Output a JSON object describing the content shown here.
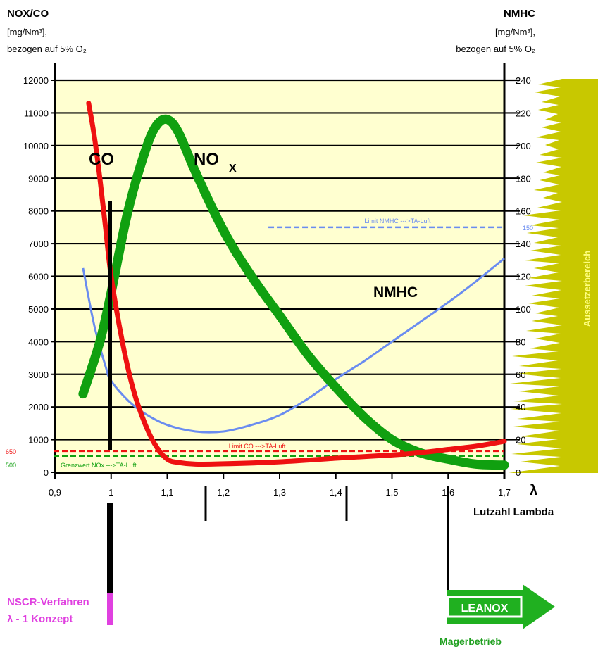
{
  "left_axis_title": {
    "line1": "NOX/CO",
    "line2": "[mg/Nm³],",
    "line3": "bezogen auf 5% O₂"
  },
  "right_axis_title": {
    "line1": "NMHC",
    "line2": "[mg/Nm³],",
    "line3": "bezogen auf 5% O₂"
  },
  "x_axis": {
    "symbol": "λ",
    "label": "Lutzahl Lambda",
    "tick_labels": [
      "0,9",
      "1",
      "1,1",
      "1,2",
      "1,3",
      "1,4",
      "1,5",
      "1,6",
      "1,7"
    ]
  },
  "curve_labels": {
    "co": "CO",
    "nox": "NO",
    "nox_sub": "X",
    "nmhc": "NMHC"
  },
  "limits": {
    "nmhc": {
      "text": "Limit NMHC --->TA-Luft",
      "value_label": "150"
    },
    "co": {
      "text": "Limit CO --->TA-Luft",
      "value_label": "650"
    },
    "nox": {
      "text": "Grenzwert NOx --->TA-Luft",
      "value_label": "500"
    }
  },
  "side_band_label": "Aussetzerbereich",
  "nscr": {
    "line1": "NSCR-Verfahren",
    "line2": "λ - 1 Konzept"
  },
  "leanox": {
    "label": "LEANOX",
    "prefix": "©",
    "sub": "Magerbetrieb"
  },
  "colors": {
    "co": "#ee1111",
    "nox": "#10a010",
    "nmhc": "#6a8cf0",
    "plot_bg": "#ffffd0",
    "band": "#c8c800",
    "nscr": "#e040e0"
  },
  "chart_data": {
    "type": "line",
    "xlabel": "Lutzahl Lambda",
    "ylabel": "NOX/CO [mg/Nm³], bezogen auf 5% O₂",
    "y2label": "NMHC [mg/Nm³], bezogen auf 5% O₂",
    "xlim": [
      0.9,
      1.7
    ],
    "ylim": [
      0,
      12000
    ],
    "y2lim": [
      0,
      240
    ],
    "y_ticks": [
      0,
      1000,
      2000,
      3000,
      4000,
      5000,
      6000,
      7000,
      8000,
      9000,
      10000,
      11000,
      12000
    ],
    "y2_ticks": [
      0,
      20,
      40,
      60,
      80,
      100,
      120,
      140,
      160,
      180,
      200,
      220,
      240
    ],
    "grid": true,
    "series": [
      {
        "name": "CO",
        "axis": "left",
        "x": [
          0.96,
          0.97,
          0.98,
          0.99,
          1.0,
          1.02,
          1.04,
          1.06,
          1.08,
          1.1,
          1.12,
          1.15,
          1.2,
          1.3,
          1.4,
          1.5,
          1.55,
          1.6,
          1.65,
          1.7
        ],
        "values": [
          11300,
          10300,
          9000,
          7500,
          6000,
          4000,
          2500,
          1500,
          800,
          400,
          300,
          250,
          260,
          320,
          430,
          530,
          600,
          700,
          800,
          950
        ]
      },
      {
        "name": "NOX",
        "axis": "left",
        "x": [
          0.95,
          0.98,
          1.0,
          1.03,
          1.06,
          1.08,
          1.1,
          1.12,
          1.15,
          1.2,
          1.25,
          1.3,
          1.35,
          1.4,
          1.45,
          1.5,
          1.55,
          1.6,
          1.65,
          1.7
        ],
        "values": [
          2400,
          4000,
          5500,
          8000,
          9800,
          10600,
          10800,
          10400,
          9200,
          7400,
          6000,
          4800,
          3600,
          2600,
          1700,
          1000,
          600,
          400,
          250,
          220
        ]
      },
      {
        "name": "NMHC",
        "axis": "right",
        "x": [
          0.95,
          0.97,
          0.99,
          1.0,
          1.03,
          1.06,
          1.1,
          1.15,
          1.2,
          1.25,
          1.3,
          1.35,
          1.4,
          1.45,
          1.5,
          1.55,
          1.6,
          1.65,
          1.7
        ],
        "values": [
          125,
          90,
          65,
          56,
          44,
          36,
          29,
          25,
          25,
          29,
          35,
          45,
          57,
          68,
          80,
          92,
          104,
          117,
          131
        ]
      }
    ],
    "reference_lines": [
      {
        "label": "Limit NMHC --->TA-Luft",
        "axis": "right",
        "value": 150
      },
      {
        "label": "Limit CO --->TA-Luft",
        "axis": "left",
        "value": 650
      },
      {
        "label": "Grenzwert NOx --->TA-Luft",
        "axis": "left",
        "value": 500
      }
    ]
  }
}
